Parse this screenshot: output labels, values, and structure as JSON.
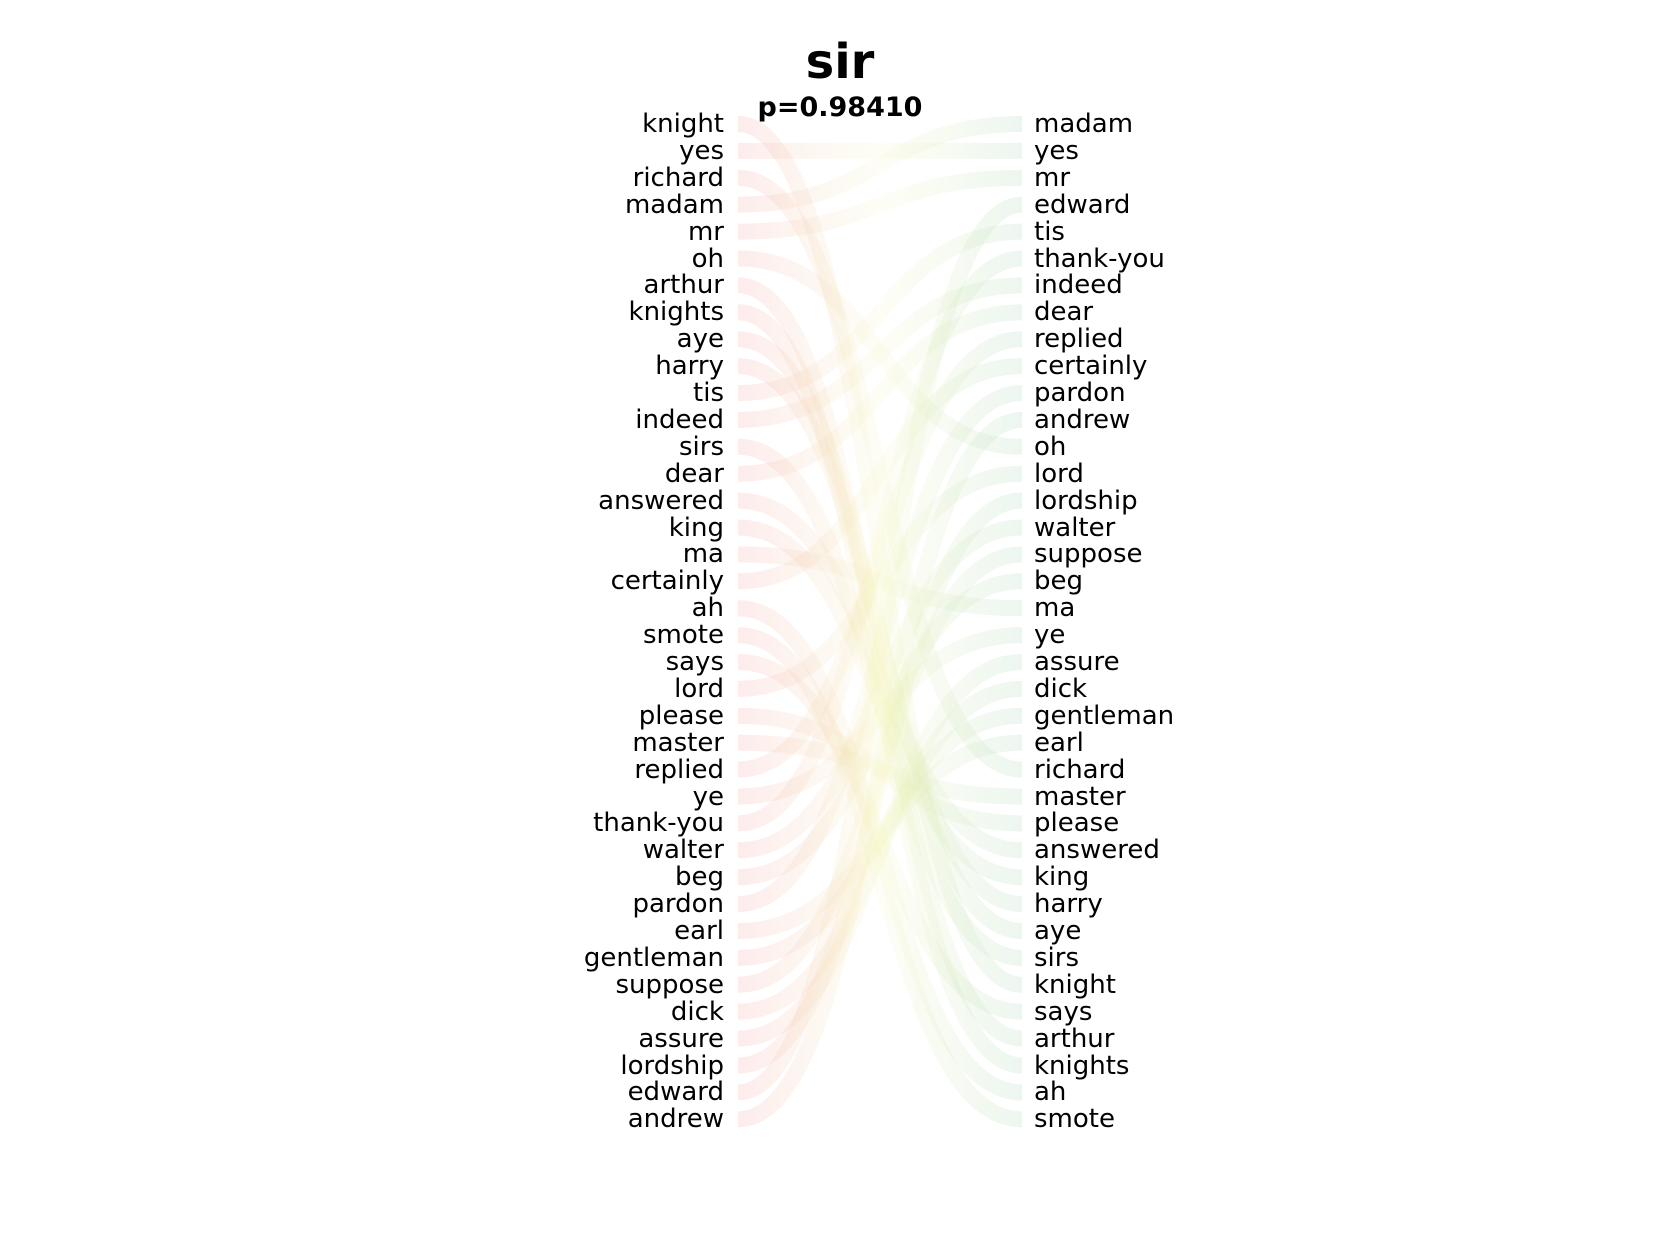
{
  "title": "sir",
  "subtitle": "p=0.98410",
  "colors": {
    "left_ribbon": "#f4a8a8",
    "right_ribbon": "#a8d8b8",
    "mid_ribbon": "#f2f2b0"
  },
  "left_words": [
    "knight",
    "yes",
    "richard",
    "madam",
    "mr",
    "oh",
    "arthur",
    "knights",
    "aye",
    "harry",
    "tis",
    "indeed",
    "sirs",
    "dear",
    "answered",
    "king",
    "ma",
    "certainly",
    "ah",
    "smote",
    "says",
    "lord",
    "please",
    "master",
    "replied",
    "ye",
    "thank-you",
    "walter",
    "beg",
    "pardon",
    "earl",
    "gentleman",
    "suppose",
    "dick",
    "assure",
    "lordship",
    "edward",
    "andrew"
  ],
  "right_words": [
    "madam",
    "yes",
    "mr",
    "edward",
    "tis",
    "thank-you",
    "indeed",
    "dear",
    "replied",
    "certainly",
    "pardon",
    "andrew",
    "oh",
    "lord",
    "lordship",
    "walter",
    "suppose",
    "beg",
    "ma",
    "ye",
    "assure",
    "dick",
    "gentleman",
    "earl",
    "richard",
    "master",
    "please",
    "answered",
    "king",
    "harry",
    "aye",
    "sirs",
    "knight",
    "says",
    "arthur",
    "knights",
    "ah",
    "smote"
  ]
}
